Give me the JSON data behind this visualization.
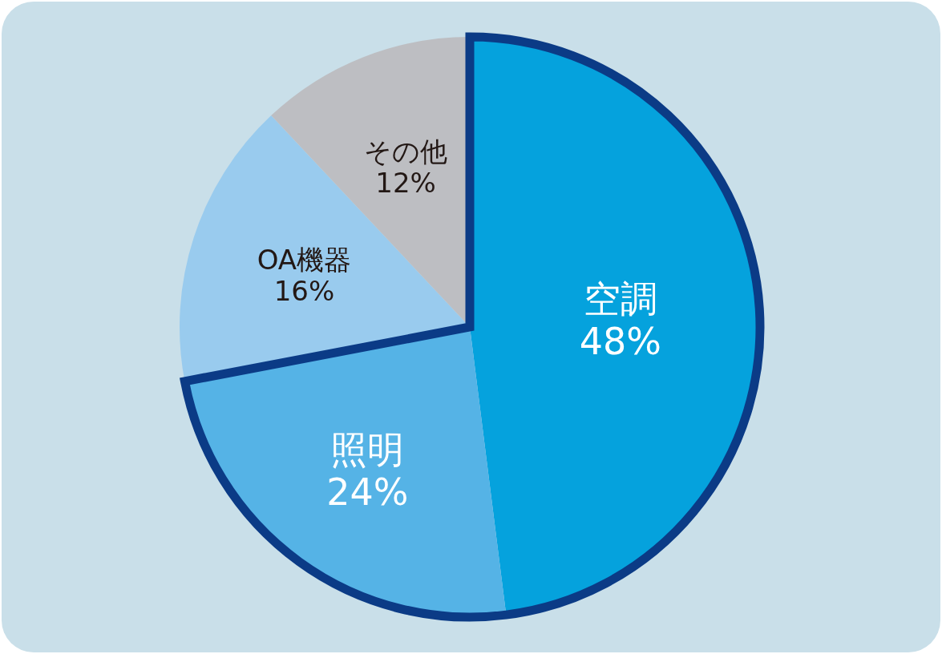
{
  "chart_data": {
    "type": "pie",
    "categories": [
      "空調",
      "照明",
      "OA機器",
      "その他"
    ],
    "values": [
      48,
      24,
      16,
      12
    ],
    "colors": [
      "#05a2dd",
      "#55b3e6",
      "#99cbee",
      "#bdbec2"
    ],
    "value_labels": [
      "48%",
      "24%",
      "16%",
      "12%"
    ]
  }
}
